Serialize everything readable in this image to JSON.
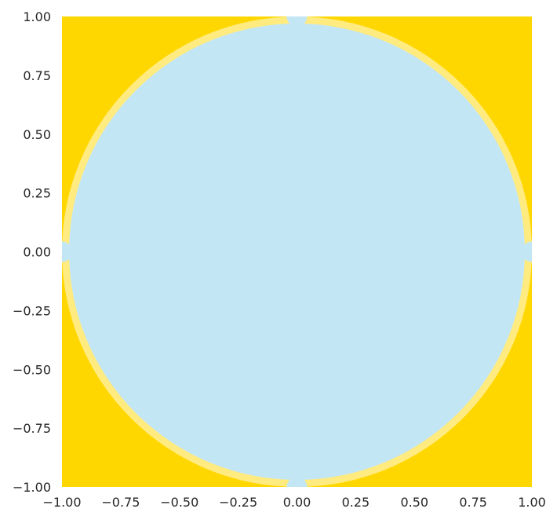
{
  "chart_data": {
    "type": "heatmap",
    "title": "",
    "xlabel": "",
    "ylabel": "",
    "xlim": [
      -1.0,
      1.0
    ],
    "ylim": [
      -1.0,
      1.0
    ],
    "x_ticks": [
      -1.0,
      -0.75,
      -0.5,
      -0.25,
      0.0,
      0.25,
      0.5,
      0.75,
      1.0
    ],
    "y_ticks": [
      -1.0,
      -0.75,
      -0.5,
      -0.25,
      0.0,
      0.25,
      0.5,
      0.75,
      1.0
    ],
    "x_tick_labels": [
      "−1.00",
      "−0.75",
      "−0.50",
      "−0.25",
      "0.00",
      "0.25",
      "0.50",
      "0.75",
      "1.00"
    ],
    "y_tick_labels": [
      "−1.00",
      "−0.75",
      "−0.50",
      "−0.25",
      "0.00",
      "0.25",
      "0.50",
      "0.75",
      "1.00"
    ],
    "grid": false,
    "legend": "none",
    "regions": [
      {
        "label": "outside",
        "condition": "x^2 + y^2 > 1",
        "color": "#FFD700"
      },
      {
        "label": "boundary-band",
        "condition": "x^2 + y^2 ≈ 1",
        "color": "#FFEB80"
      },
      {
        "label": "inside",
        "condition": "x^2 + y^2 < 1",
        "color": "#C2E6F4"
      }
    ],
    "circle": {
      "center": [
        0.0,
        0.0
      ],
      "radius": 1.0
    }
  }
}
